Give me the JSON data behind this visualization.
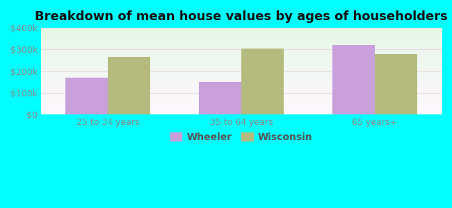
{
  "title": "Breakdown of mean house values by ages of householders",
  "categories": [
    "25 to 34 years",
    "35 to 64 years",
    "65 years+"
  ],
  "wheeler_values": [
    170000,
    150000,
    320000
  ],
  "wisconsin_values": [
    265000,
    305000,
    280000
  ],
  "wheeler_color": "#c9a0dc",
  "wisconsin_color": "#b5bb7e",
  "ylim": [
    0,
    400000
  ],
  "yticks": [
    0,
    100000,
    200000,
    300000,
    400000
  ],
  "ytick_labels": [
    "$0",
    "$100k",
    "$200k",
    "$300k",
    "$400k"
  ],
  "bar_width": 0.32,
  "background_color": "#00ffff",
  "plot_bg_top": "#e8f5f0",
  "plot_bg_bottom": "#d0f0e0",
  "legend_labels": [
    "Wheeler",
    "Wisconsin"
  ],
  "title_fontsize": 13,
  "label_fontsize": 10,
  "tick_fontsize": 9,
  "grid_color": "#e8d8e8",
  "tick_color": "#888888"
}
